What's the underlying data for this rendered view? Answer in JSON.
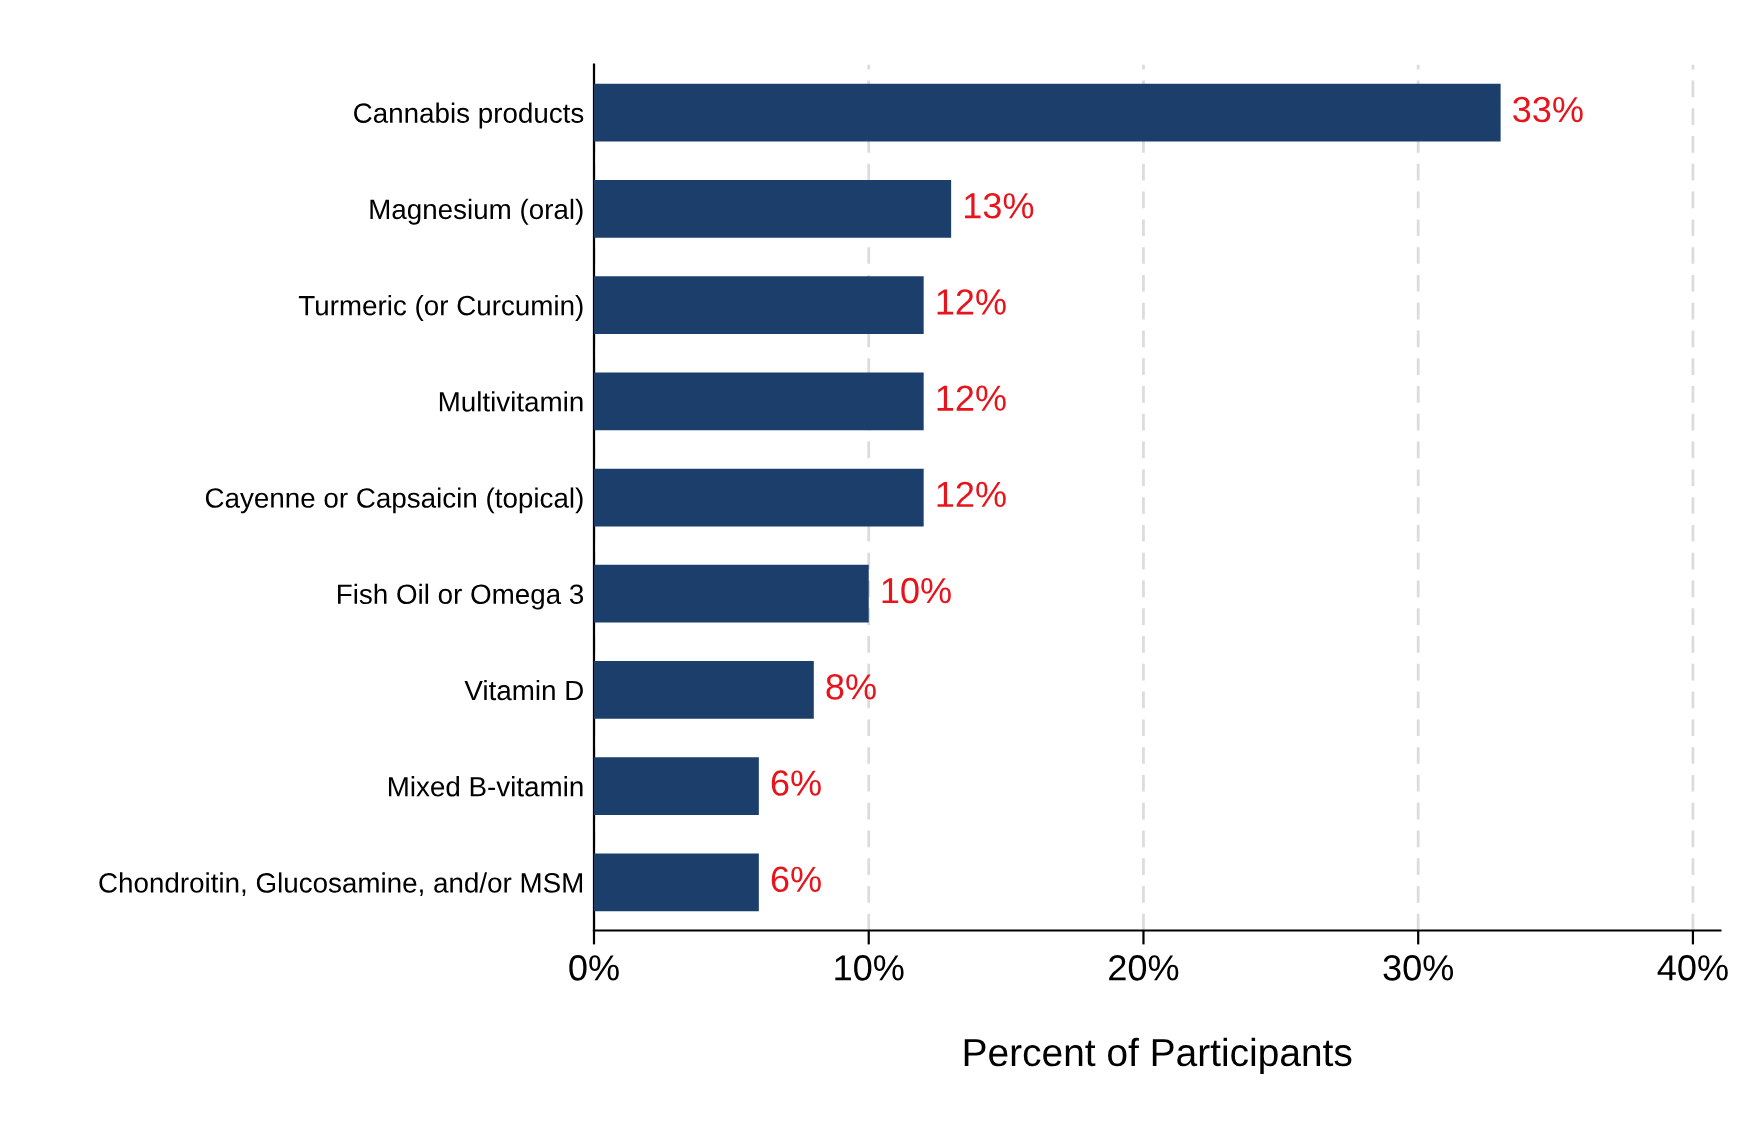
{
  "chart_data": {
    "type": "bar",
    "orientation": "horizontal",
    "xlabel": "Percent of Participants",
    "categories": [
      "Cannabis products",
      "Magnesium (oral)",
      "Turmeric (or Curcumin)",
      "Multivitamin",
      "Cayenne or Capsaicin (topical)",
      "Fish Oil or Omega 3",
      "Vitamin D",
      "Mixed B-vitamin",
      "Chondroitin, Glucosamine, and/or MSM"
    ],
    "values": [
      33,
      13,
      12,
      12,
      12,
      10,
      8,
      6,
      6
    ],
    "value_labels": [
      "33%",
      "13%",
      "12%",
      "12%",
      "12%",
      "10%",
      "8%",
      "6%",
      "6%"
    ],
    "color": "#1b3f6a",
    "xlim": [
      0,
      41
    ],
    "xticks": [
      {
        "value": 0,
        "label": "0%"
      },
      {
        "value": 10,
        "label": "10%"
      },
      {
        "value": 20,
        "label": "20%"
      },
      {
        "value": 30,
        "label": "30%"
      },
      {
        "value": 40,
        "label": "40%"
      }
    ],
    "grid": "x"
  }
}
